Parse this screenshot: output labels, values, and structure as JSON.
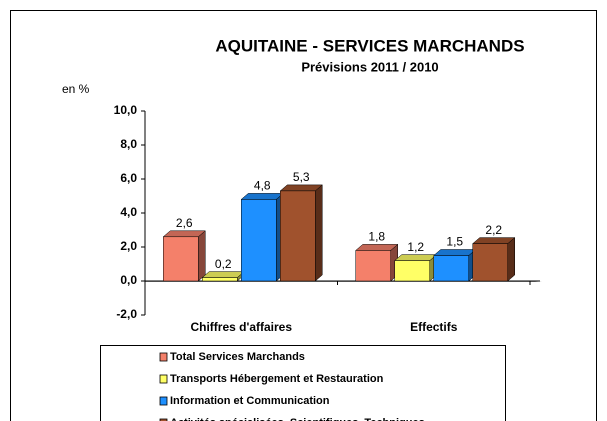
{
  "chart_data": {
    "type": "bar",
    "title": "AQUITAINE - SERVICES MARCHANDS",
    "subtitle": "Prévisions 2011 / 2010",
    "y_label": "en %",
    "categories": [
      "Chiffres d'affaires",
      "Effectifs"
    ],
    "series": [
      {
        "name": "Total Services Marchands",
        "color": "#f4806a",
        "values": [
          2.6,
          1.8
        ],
        "value_labels": [
          "2,6",
          "1,8"
        ]
      },
      {
        "name": "Transports Hébergement et Restauration",
        "color": "#ffff66",
        "values": [
          0.2,
          1.2
        ],
        "value_labels": [
          "0,2",
          "1,2"
        ]
      },
      {
        "name": "Information et Communication",
        "color": "#1e90ff",
        "values": [
          4.8,
          1.5
        ],
        "value_labels": [
          "4,8",
          "1,5"
        ]
      },
      {
        "name": "Activités spécialisées, Scientifiques, Techniques",
        "color": "#a0522d",
        "values": [
          5.3,
          2.2
        ],
        "value_labels": [
          "5,3",
          "2,2"
        ]
      }
    ],
    "ylim": [
      -2,
      10
    ],
    "yticks": [
      {
        "value": -2,
        "label": "-2,0"
      },
      {
        "value": 0,
        "label": "0,0"
      },
      {
        "value": 2,
        "label": "2,0"
      },
      {
        "value": 4,
        "label": "4,0"
      },
      {
        "value": 6,
        "label": "6,0"
      },
      {
        "value": 8,
        "label": "8,0"
      },
      {
        "value": 10,
        "label": "10,0"
      }
    ]
  }
}
